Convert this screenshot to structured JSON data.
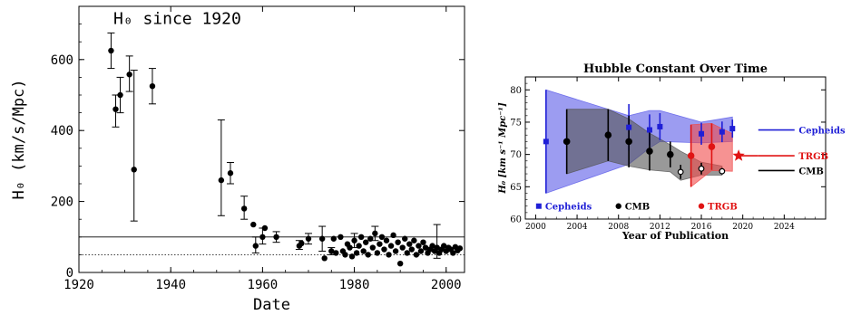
{
  "chart_data": [
    {
      "type": "scatter",
      "title": "",
      "annotation": "H₀ since 1920",
      "xlabel": "Date",
      "ylabel": "H₀ (km/s/Mpc)",
      "xlim": [
        1920,
        2004
      ],
      "ylim": [
        0,
        750
      ],
      "x_ticks": [
        1920,
        1940,
        1960,
        1980,
        2000
      ],
      "y_ticks": [
        0,
        200,
        400,
        600
      ],
      "reference_lines": [
        {
          "y": 100,
          "style": "solid"
        },
        {
          "y": 50,
          "style": "dotted"
        }
      ],
      "points": [
        {
          "x": 1927,
          "y": 625,
          "lo": 575,
          "hi": 675
        },
        {
          "x": 1928,
          "y": 460,
          "lo": 410,
          "hi": 500
        },
        {
          "x": 1929,
          "y": 500,
          "lo": 450,
          "hi": 550
        },
        {
          "x": 1931,
          "y": 558,
          "lo": 510,
          "hi": 610
        },
        {
          "x": 1932,
          "y": 290,
          "lo": 145,
          "hi": 570
        },
        {
          "x": 1936,
          "y": 525,
          "lo": 475,
          "hi": 575
        },
        {
          "x": 1951,
          "y": 260,
          "lo": 160,
          "hi": 430
        },
        {
          "x": 1953,
          "y": 280,
          "lo": 250,
          "hi": 310
        },
        {
          "x": 1956,
          "y": 180,
          "lo": 150,
          "hi": 215
        },
        {
          "x": 1958,
          "y": 135
        },
        {
          "x": 1958.5,
          "y": 75,
          "lo": 55,
          "hi": 100
        },
        {
          "x": 1960,
          "y": 100,
          "lo": 80,
          "hi": 125
        },
        {
          "x": 1960.5,
          "y": 125
        },
        {
          "x": 1963,
          "y": 100,
          "lo": 85,
          "hi": 115
        },
        {
          "x": 1968,
          "y": 75,
          "lo": 65,
          "hi": 90
        },
        {
          "x": 1968.5,
          "y": 82
        },
        {
          "x": 1970,
          "y": 95,
          "lo": 80,
          "hi": 110
        },
        {
          "x": 1973,
          "y": 95,
          "lo": 60,
          "hi": 130
        },
        {
          "x": 1973.5,
          "y": 40
        },
        {
          "x": 1975,
          "y": 60,
          "lo": 50,
          "hi": 70
        },
        {
          "x": 1975.5,
          "y": 95
        },
        {
          "x": 1976,
          "y": 55
        },
        {
          "x": 1977,
          "y": 100
        },
        {
          "x": 1977.5,
          "y": 60
        },
        {
          "x": 1978,
          "y": 50
        },
        {
          "x": 1978.5,
          "y": 80
        },
        {
          "x": 1979,
          "y": 70
        },
        {
          "x": 1979.5,
          "y": 45
        },
        {
          "x": 1980,
          "y": 90,
          "lo": 70,
          "hi": 110
        },
        {
          "x": 1980.5,
          "y": 55
        },
        {
          "x": 1981,
          "y": 75
        },
        {
          "x": 1981.5,
          "y": 100
        },
        {
          "x": 1982,
          "y": 60
        },
        {
          "x": 1982.5,
          "y": 85
        },
        {
          "x": 1983,
          "y": 50
        },
        {
          "x": 1983.5,
          "y": 95
        },
        {
          "x": 1984,
          "y": 70
        },
        {
          "x": 1984.5,
          "y": 110,
          "lo": 90,
          "hi": 130
        },
        {
          "x": 1985,
          "y": 55
        },
        {
          "x": 1985.5,
          "y": 80
        },
        {
          "x": 1986,
          "y": 100
        },
        {
          "x": 1986.5,
          "y": 65
        },
        {
          "x": 1987,
          "y": 90
        },
        {
          "x": 1987.5,
          "y": 50
        },
        {
          "x": 1988,
          "y": 75
        },
        {
          "x": 1988.5,
          "y": 105
        },
        {
          "x": 1989,
          "y": 60
        },
        {
          "x": 1989.5,
          "y": 85
        },
        {
          "x": 1990,
          "y": 25
        },
        {
          "x": 1990.5,
          "y": 70
        },
        {
          "x": 1991,
          "y": 95
        },
        {
          "x": 1991.5,
          "y": 55
        },
        {
          "x": 1992,
          "y": 80
        },
        {
          "x": 1992.5,
          "y": 65
        },
        {
          "x": 1993,
          "y": 90
        },
        {
          "x": 1993.5,
          "y": 50
        },
        {
          "x": 1994,
          "y": 75
        },
        {
          "x": 1994.5,
          "y": 60
        },
        {
          "x": 1995,
          "y": 85
        },
        {
          "x": 1995.5,
          "y": 70
        },
        {
          "x": 1996,
          "y": 55
        },
        {
          "x": 1996.5,
          "y": 65
        },
        {
          "x": 1997,
          "y": 75
        },
        {
          "x": 1997.5,
          "y": 60
        },
        {
          "x": 1998,
          "y": 70,
          "lo": 40,
          "hi": 135
        },
        {
          "x": 1998.5,
          "y": 55
        },
        {
          "x": 1999,
          "y": 65
        },
        {
          "x": 1999.5,
          "y": 75
        },
        {
          "x": 2000,
          "y": 60
        },
        {
          "x": 2000.5,
          "y": 70
        },
        {
          "x": 2001,
          "y": 65
        },
        {
          "x": 2001.5,
          "y": 55
        },
        {
          "x": 2002,
          "y": 72
        },
        {
          "x": 2002.5,
          "y": 62
        },
        {
          "x": 2003,
          "y": 68
        }
      ]
    },
    {
      "type": "scatter",
      "title": "Hubble Constant Over Time",
      "xlabel": "Year of Publication",
      "ylabel": "H₀ [km s⁻¹ Mpc⁻¹]",
      "xlim": [
        1999,
        2028
      ],
      "ylim": [
        60,
        82
      ],
      "x_ticks": [
        2000,
        2004,
        2008,
        2012,
        2016,
        2020,
        2024
      ],
      "y_ticks": [
        60,
        65,
        70,
        75,
        80
      ],
      "bottom_legend": [
        "Cepheids",
        "CMB",
        "TRGB"
      ],
      "series": [
        {
          "name": "Cepheids",
          "color": "#1f1fd6",
          "band_color": "#5a5ae8",
          "marker": "square",
          "band_upper": [
            [
              2001,
              80
            ],
            [
              2009,
              76
            ],
            [
              2011,
              76.8
            ],
            [
              2012,
              76.8
            ],
            [
              2016,
              75
            ],
            [
              2019,
              75.8
            ]
          ],
          "band_lower": [
            [
              2001,
              64
            ],
            [
              2009,
              68.5
            ],
            [
              2011,
              71
            ],
            [
              2012,
              72
            ],
            [
              2016,
              71.8
            ],
            [
              2019,
              72
            ]
          ],
          "points": [
            {
              "x": 2001,
              "y": 72,
              "lo": 64,
              "hi": 80
            },
            {
              "x": 2009,
              "y": 74.2,
              "lo": 70.6,
              "hi": 77.8
            },
            {
              "x": 2011,
              "y": 73.8,
              "lo": 71.4,
              "hi": 76.2
            },
            {
              "x": 2012,
              "y": 74.3,
              "lo": 72.2,
              "hi": 76.4
            },
            {
              "x": 2016,
              "y": 73.2,
              "lo": 71.5,
              "hi": 74.9
            },
            {
              "x": 2018,
              "y": 73.5,
              "lo": 71.9,
              "hi": 75.1
            },
            {
              "x": 2019,
              "y": 74.0,
              "lo": 72.6,
              "hi": 75.4
            }
          ],
          "label": "Cepheids"
        },
        {
          "name": "CMB",
          "color": "#000000",
          "band_color": "#555555",
          "marker": "circle",
          "band_upper": [
            [
              2003,
              77
            ],
            [
              2007,
              77
            ],
            [
              2009,
              75.5
            ],
            [
              2011,
              73.3
            ],
            [
              2013,
              71.5
            ],
            [
              2014,
              70.5
            ],
            [
              2016,
              68.8
            ],
            [
              2018,
              68.2
            ]
          ],
          "band_lower": [
            [
              2003,
              67
            ],
            [
              2007,
              69
            ],
            [
              2009,
              68.2
            ],
            [
              2011,
              67.6
            ],
            [
              2013,
              67.3
            ],
            [
              2014,
              66.0
            ],
            [
              2016,
              66.8
            ],
            [
              2018,
              66.8
            ]
          ],
          "points": [
            {
              "x": 2003,
              "y": 72,
              "lo": 67,
              "hi": 77,
              "filled": true
            },
            {
              "x": 2007,
              "y": 73,
              "lo": 69,
              "hi": 77,
              "filled": true
            },
            {
              "x": 2009,
              "y": 72,
              "lo": 68,
              "hi": 76,
              "filled": true
            },
            {
              "x": 2011,
              "y": 70.5,
              "lo": 67.5,
              "hi": 73.5,
              "filled": true
            },
            {
              "x": 2013,
              "y": 70,
              "lo": 68,
              "hi": 72,
              "filled": true
            },
            {
              "x": 2014,
              "y": 67.3,
              "lo": 66.2,
              "hi": 68.4,
              "filled": false
            },
            {
              "x": 2016,
              "y": 67.8,
              "lo": 66.9,
              "hi": 68.7,
              "filled": false
            },
            {
              "x": 2018,
              "y": 67.4,
              "lo": 66.9,
              "hi": 67.9,
              "filled": false
            }
          ],
          "label": "CMB"
        },
        {
          "name": "TRGB",
          "color": "#e01414",
          "band_color": "#f04a4a",
          "marker": "circle",
          "band_upper": [
            [
              2015,
              74.6
            ],
            [
              2017,
              74.8
            ],
            [
              2019,
              73.2
            ]
          ],
          "band_lower": [
            [
              2015,
              65
            ],
            [
              2017,
              67.5
            ],
            [
              2019,
              67.4
            ]
          ],
          "points": [
            {
              "x": 2015,
              "y": 69.8,
              "lo": 65,
              "hi": 74.6,
              "marker": "circle"
            },
            {
              "x": 2017,
              "y": 71.2,
              "lo": 67.6,
              "hi": 74.8,
              "marker": "circle"
            },
            {
              "x": 2019.6,
              "y": 69.8,
              "marker": "star"
            }
          ],
          "label": "TRGB"
        }
      ]
    }
  ]
}
